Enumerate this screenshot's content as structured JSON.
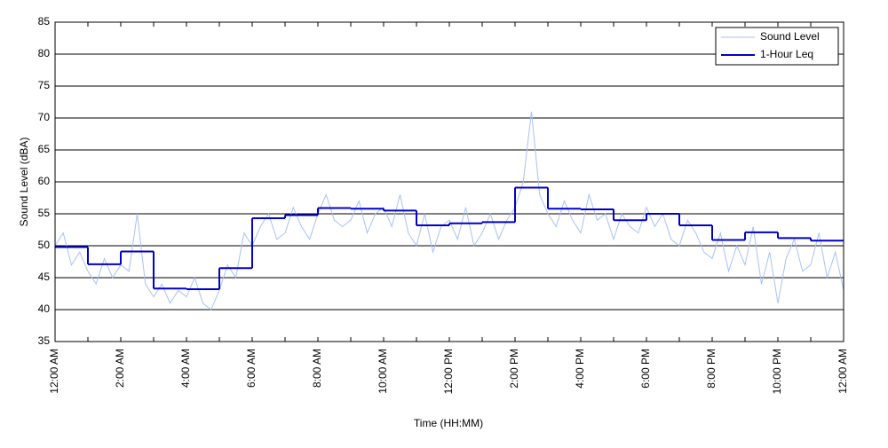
{
  "chart_data": {
    "type": "line",
    "ylabel": "Sound Level (dBA)",
    "xlabel": "Time (HH:MM)",
    "ylim": [
      35,
      85
    ],
    "yticks": [
      35,
      40,
      45,
      50,
      55,
      60,
      65,
      70,
      75,
      80,
      85
    ],
    "xlim": [
      0,
      24
    ],
    "xticks": [
      {
        "value": 0,
        "label": "12:00 AM"
      },
      {
        "value": 2,
        "label": "2:00 AM"
      },
      {
        "value": 4,
        "label": "4:00 AM"
      },
      {
        "value": 6,
        "label": "6:00 AM"
      },
      {
        "value": 8,
        "label": "8:00 AM"
      },
      {
        "value": 10,
        "label": "10:00 AM"
      },
      {
        "value": 12,
        "label": "12:00 PM"
      },
      {
        "value": 14,
        "label": "2:00 PM"
      },
      {
        "value": 16,
        "label": "4:00 PM"
      },
      {
        "value": 18,
        "label": "6:00 PM"
      },
      {
        "value": 20,
        "label": "8:00 PM"
      },
      {
        "value": 22,
        "label": "10:00 PM"
      },
      {
        "value": 24,
        "label": "12:00 AM"
      }
    ],
    "xminorticks": [
      1,
      3,
      5,
      7,
      9,
      11,
      13,
      15,
      17,
      19,
      21,
      23
    ],
    "grid": true,
    "legend": "upper right",
    "series": [
      {
        "name": "Sound Level",
        "color": "#a9c1f2",
        "style": "line",
        "x": [
          0,
          0.25,
          0.5,
          0.75,
          1,
          1.25,
          1.5,
          1.75,
          2,
          2.25,
          2.5,
          2.75,
          3,
          3.25,
          3.5,
          3.75,
          4,
          4.25,
          4.5,
          4.75,
          5,
          5.25,
          5.5,
          5.75,
          6,
          6.25,
          6.5,
          6.75,
          7,
          7.25,
          7.5,
          7.75,
          8,
          8.25,
          8.5,
          8.75,
          9,
          9.25,
          9.5,
          9.75,
          10,
          10.25,
          10.5,
          10.75,
          11,
          11.25,
          11.5,
          11.75,
          12,
          12.25,
          12.5,
          12.75,
          13,
          13.25,
          13.5,
          13.75,
          14,
          14.25,
          14.5,
          14.75,
          15,
          15.25,
          15.5,
          15.75,
          16,
          16.25,
          16.5,
          16.75,
          17,
          17.25,
          17.5,
          17.75,
          18,
          18.25,
          18.5,
          18.75,
          19,
          19.25,
          19.5,
          19.75,
          20,
          20.25,
          20.5,
          20.75,
          21,
          21.25,
          21.5,
          21.75,
          22,
          22.25,
          22.5,
          22.75,
          23,
          23.25,
          23.5,
          23.75,
          24
        ],
        "values": [
          50,
          52,
          47,
          49,
          46,
          44,
          48,
          45,
          47,
          46,
          55,
          44,
          42,
          44,
          41,
          43,
          42,
          45,
          41,
          40,
          43,
          47,
          45,
          52,
          50,
          53,
          55,
          51,
          52,
          56,
          53,
          51,
          55,
          58,
          54,
          53,
          54,
          57,
          52,
          55,
          56,
          53,
          58,
          52,
          50,
          55,
          49,
          53,
          54,
          51,
          56,
          50,
          52,
          55,
          51,
          54,
          56,
          60,
          71,
          58,
          55,
          53,
          57,
          54,
          52,
          58,
          54,
          55,
          51,
          55,
          53,
          52,
          56,
          53,
          55,
          51,
          50,
          54,
          52,
          49,
          48,
          52,
          46,
          50,
          47,
          53,
          44,
          49,
          41,
          48,
          51,
          46,
          47,
          52,
          45,
          49,
          43
        ]
      },
      {
        "name": "1-Hour Leq",
        "color": "#0000cc",
        "style": "step",
        "x": [
          0,
          1,
          2,
          3,
          4,
          5,
          6,
          7,
          8,
          9,
          10,
          11,
          12,
          13,
          14,
          15,
          16,
          17,
          18,
          19,
          20,
          21,
          22,
          23
        ],
        "values": [
          49.8,
          47.1,
          49.1,
          43.3,
          43.2,
          46.5,
          54.3,
          54.8,
          55.9,
          55.8,
          55.5,
          53.2,
          53.5,
          53.7,
          59.1,
          55.8,
          55.7,
          54.0,
          55.0,
          53.2,
          50.9,
          52.1,
          51.2,
          50.8
        ]
      }
    ]
  }
}
